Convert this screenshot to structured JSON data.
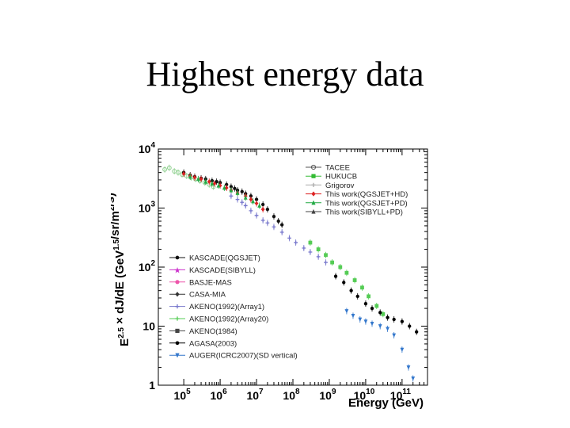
{
  "slide": {
    "title": "Highest energy data"
  },
  "chart_data": {
    "type": "scatter",
    "xlabel": "Energy (GeV)",
    "ylabel": "E^2.5 × dJ/dE (GeV^1.5/sr/m^2/s)",
    "x_scale": "log",
    "y_scale": "log",
    "xlim": [
      20000,
      500000000000
    ],
    "ylim": [
      1,
      10000
    ],
    "x_ticks": [
      {
        "value": 100000,
        "base": "10",
        "exp": "5"
      },
      {
        "value": 1000000,
        "base": "10",
        "exp": "6"
      },
      {
        "value": 10000000,
        "base": "10",
        "exp": "7"
      },
      {
        "value": 100000000,
        "base": "10",
        "exp": "8"
      },
      {
        "value": 1000000000,
        "base": "10",
        "exp": "9"
      },
      {
        "value": 10000000000,
        "base": "10",
        "exp": "10"
      },
      {
        "value": 100000000000,
        "base": "10",
        "exp": "11"
      }
    ],
    "y_ticks": [
      {
        "value": 10000,
        "base": "10",
        "exp": "4"
      },
      {
        "value": 1000,
        "base": "10",
        "exp": "3"
      },
      {
        "value": 100,
        "base": "10",
        "exp": "2"
      },
      {
        "value": 10,
        "base": "10",
        "exp": ""
      },
      {
        "value": 1,
        "base": "1",
        "exp": ""
      }
    ],
    "legend_top": [
      {
        "label": "TACEE",
        "color": "#555555",
        "marker": "open-circle"
      },
      {
        "label": "HUKUCB",
        "color": "#33bb33",
        "marker": "square"
      },
      {
        "label": "Grigorov",
        "color": "#aaaaaa",
        "marker": "cross"
      },
      {
        "label": "This work(QGSJET+HD)",
        "color": "#dd2222",
        "marker": "diamond"
      },
      {
        "label": "This work(QGSJET+PD)",
        "color": "#22aa44",
        "marker": "triangle"
      },
      {
        "label": "This work(SIBYLL+PD)",
        "color": "#444444",
        "marker": "triangle"
      }
    ],
    "legend_bottom": [
      {
        "label": "KASCADE(QGSJET)",
        "color": "#111111",
        "marker": "dot"
      },
      {
        "label": "KASCADE(SIBYLL)",
        "color": "#cc33cc",
        "marker": "star"
      },
      {
        "label": "BASJE-MAS",
        "color": "#ee55aa",
        "marker": "circle"
      },
      {
        "label": "CASA-MIA",
        "color": "#333333",
        "marker": "diamond"
      },
      {
        "label": "AKENO(1992)(Array1)",
        "color": "#7777cc",
        "marker": "cross"
      },
      {
        "label": "AKENO(1992)(Array20)",
        "color": "#55cc55",
        "marker": "cross"
      },
      {
        "label": "AKENO(1984)",
        "color": "#444444",
        "marker": "square"
      },
      {
        "label": "AGASA(2003)",
        "color": "#000000",
        "marker": "dot"
      },
      {
        "label": "AUGER(ICRC2007)(SD vertical)",
        "color": "#3377cc",
        "marker": "down-triangle"
      }
    ],
    "series": [
      {
        "color": "#8fd08f",
        "marker": "open-circle",
        "points": [
          [
            30000,
            4500
          ],
          [
            40000,
            4800
          ],
          [
            55000,
            4200
          ],
          [
            70000,
            4000
          ],
          [
            90000,
            3700
          ],
          [
            120000,
            3500
          ],
          [
            160000,
            3300
          ],
          [
            210000,
            3100
          ],
          [
            280000,
            2900
          ],
          [
            380000,
            2700
          ],
          [
            500000,
            2500
          ],
          [
            650000,
            2300
          ]
        ]
      },
      {
        "color": "#111111",
        "marker": "dot",
        "points": [
          [
            100000,
            4000
          ],
          [
            150000,
            3600
          ],
          [
            200000,
            3400
          ],
          [
            300000,
            3200
          ],
          [
            400000,
            3100
          ],
          [
            600000,
            2900
          ],
          [
            800000,
            2800
          ],
          [
            1000000,
            2700
          ],
          [
            1500000,
            2500
          ],
          [
            2000000,
            2300
          ],
          [
            2500000,
            2150
          ],
          [
            3000000,
            2000
          ],
          [
            4000000,
            1900
          ],
          [
            5000000,
            1750
          ],
          [
            7000000,
            1600
          ],
          [
            10000000,
            1400
          ],
          [
            15000000,
            1150
          ],
          [
            20000000,
            950
          ],
          [
            30000000,
            720
          ],
          [
            40000000,
            600
          ],
          [
            50000000,
            520
          ]
        ]
      },
      {
        "color": "#dd2222",
        "marker": "diamond",
        "points": [
          [
            100000,
            3800
          ],
          [
            150000,
            3500
          ],
          [
            200000,
            3300
          ],
          [
            300000,
            3100
          ],
          [
            500000,
            2800
          ],
          [
            700000,
            2600
          ],
          [
            1000000,
            2400
          ],
          [
            1500000,
            2200
          ],
          [
            2000000,
            2000
          ],
          [
            3000000,
            1800
          ],
          [
            5000000,
            1600
          ],
          [
            7000000,
            1400
          ],
          [
            10000000,
            1200
          ],
          [
            15000000,
            950
          ]
        ]
      },
      {
        "color": "#22aa44",
        "marker": "triangle",
        "points": [
          [
            150000,
            3400
          ],
          [
            250000,
            3100
          ],
          [
            400000,
            2800
          ],
          [
            600000,
            2600
          ],
          [
            900000,
            2400
          ],
          [
            1300000,
            2200
          ],
          [
            2000000,
            2000
          ],
          [
            3000000,
            1800
          ],
          [
            5000000,
            1500
          ],
          [
            8000000,
            1300
          ],
          [
            12000000,
            1100
          ]
        ]
      },
      {
        "color": "#7777cc",
        "marker": "cross",
        "points": [
          [
            2000000,
            1600
          ],
          [
            3000000,
            1400
          ],
          [
            4000000,
            1250
          ],
          [
            5000000,
            1100
          ],
          [
            7000000,
            900
          ],
          [
            10000000,
            750
          ],
          [
            15000000,
            620
          ],
          [
            20000000,
            560
          ],
          [
            30000000,
            480
          ],
          [
            50000000,
            390
          ],
          [
            80000000,
            310
          ],
          [
            120000000,
            260
          ],
          [
            200000000,
            210
          ],
          [
            300000000,
            180
          ],
          [
            500000000,
            150
          ],
          [
            800000000,
            120
          ]
        ]
      },
      {
        "color": "#55cc55",
        "marker": "square",
        "points": [
          [
            300000000,
            260
          ],
          [
            500000000,
            200
          ],
          [
            800000000,
            160
          ],
          [
            1200000000,
            120
          ],
          [
            2000000000,
            100
          ],
          [
            3000000000,
            80
          ],
          [
            5000000000,
            60
          ],
          [
            8000000000,
            45
          ],
          [
            12000000000,
            32
          ],
          [
            20000000000,
            22
          ],
          [
            30000000000,
            16
          ]
        ]
      },
      {
        "color": "#000000",
        "marker": "dot",
        "points": [
          [
            1500000000,
            70
          ],
          [
            2500000000,
            55
          ],
          [
            4000000000,
            40
          ],
          [
            6000000000,
            32
          ],
          [
            10000000000,
            24
          ],
          [
            15000000000,
            20
          ],
          [
            25000000000,
            17
          ],
          [
            40000000000,
            14
          ],
          [
            60000000000,
            13
          ],
          [
            100000000000,
            12
          ],
          [
            160000000000,
            10
          ],
          [
            250000000000,
            8
          ]
        ]
      },
      {
        "color": "#3377cc",
        "marker": "down-triangle",
        "points": [
          [
            3000000000,
            18
          ],
          [
            4500000000,
            15
          ],
          [
            7000000000,
            13
          ],
          [
            10000000000,
            12
          ],
          [
            15000000000,
            11
          ],
          [
            25000000000,
            10
          ],
          [
            40000000000,
            9
          ],
          [
            60000000000,
            7
          ],
          [
            100000000000,
            4
          ],
          [
            150000000000,
            2
          ],
          [
            200000000000,
            1.3
          ]
        ]
      }
    ]
  }
}
